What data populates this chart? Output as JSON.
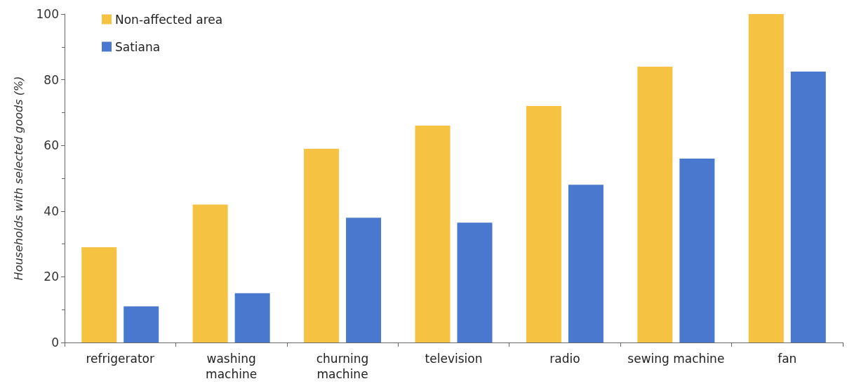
{
  "chart_data": {
    "type": "bar",
    "ylabel": "Households with selected goods (%)",
    "categories": [
      "refrigerator",
      "washing\nmachine",
      "churning\nmachine",
      "television",
      "radio",
      "sewing machine",
      "fan"
    ],
    "series": [
      {
        "name": "Non-affected area",
        "color": "#f5c242",
        "values": [
          29,
          42,
          59,
          66,
          72,
          84,
          100
        ]
      },
      {
        "name": "Satiana",
        "color": "#4a78cf",
        "values": [
          11,
          15,
          38,
          36.5,
          48,
          56,
          82.5
        ]
      }
    ],
    "ylim": [
      0,
      100
    ],
    "yticks": [
      0,
      20,
      40,
      60,
      80,
      100
    ],
    "grid": false,
    "legend": "top left"
  }
}
